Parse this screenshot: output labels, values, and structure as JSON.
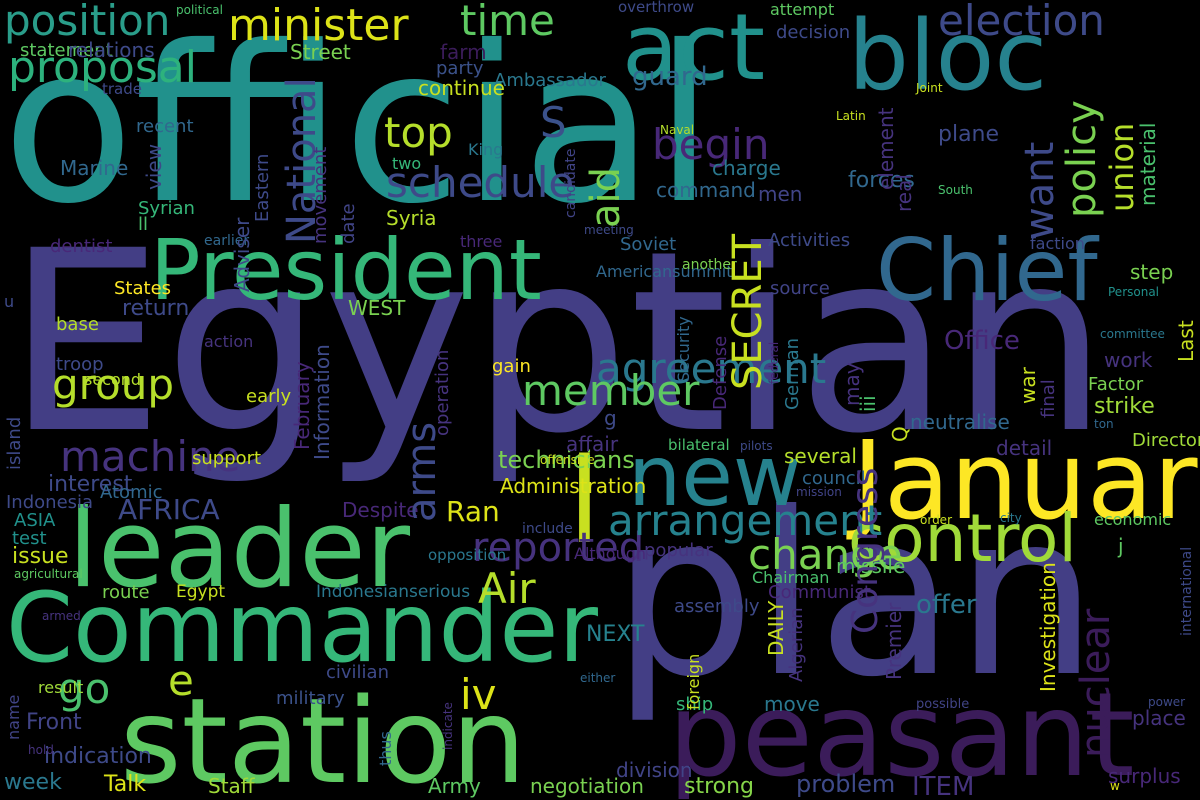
{
  "words": [
    {
      "text": "official",
      "color": "#21918c"
    },
    {
      "text": "Egyptian",
      "color": "#433e85"
    },
    {
      "text": "plan",
      "color": "#433e85"
    },
    {
      "text": "station",
      "color": "#5ec962"
    },
    {
      "text": "Commander",
      "color": "#35b779"
    },
    {
      "text": "leader",
      "color": "#4ac16d"
    },
    {
      "text": "President",
      "color": "#35b779"
    },
    {
      "text": "peasant",
      "color": "#3b1c5a"
    },
    {
      "text": "January",
      "color": "#fde725"
    },
    {
      "text": "Chief",
      "color": "#31688e"
    },
    {
      "text": "new",
      "color": "#26828e"
    },
    {
      "text": "act",
      "color": "#21918c"
    },
    {
      "text": "bloc",
      "color": "#26828e"
    },
    {
      "text": "control",
      "color": "#a0da39"
    },
    {
      "text": "l",
      "color": "#c8e020"
    },
    {
      "text": "minister",
      "color": "#dde318"
    },
    {
      "text": "position",
      "color": "#2a9d8a"
    },
    {
      "text": "proposal",
      "color": "#2db27d"
    },
    {
      "text": "time",
      "color": "#5ec962"
    },
    {
      "text": "election",
      "color": "#3e4a89"
    },
    {
      "text": "group",
      "color": "#b5de2b"
    },
    {
      "text": "top",
      "color": "#b5de2b"
    },
    {
      "text": "S",
      "color": "#3b528b"
    },
    {
      "text": "schedule",
      "color": "#3e4a89"
    },
    {
      "text": "begin",
      "color": "#482878"
    },
    {
      "text": "guard",
      "color": "#31688e"
    },
    {
      "text": "machine",
      "color": "#46337e"
    },
    {
      "text": "agreement",
      "color": "#2a788e"
    },
    {
      "text": "member",
      "color": "#5ec962"
    },
    {
      "text": "change",
      "color": "#7ad151"
    },
    {
      "text": "reported",
      "color": "#46327e"
    },
    {
      "text": "arrangement",
      "color": "#26828e"
    },
    {
      "text": "iv",
      "color": "#dde318"
    },
    {
      "text": "go",
      "color": "#4ac16d"
    },
    {
      "text": "e",
      "color": "#b5de2b"
    },
    {
      "text": "Air",
      "color": "#b5de2b"
    },
    {
      "text": "Ran",
      "color": "#dde318"
    },
    {
      "text": "AFRICA",
      "color": "#3e4a89"
    },
    {
      "text": "Office",
      "color": "#482878"
    },
    {
      "text": "WEST",
      "color": "#7ad151"
    },
    {
      "text": "return",
      "color": "#3e4a89"
    },
    {
      "text": "offer",
      "color": "#2a788e"
    },
    {
      "text": "problem",
      "color": "#3e4a89"
    },
    {
      "text": "ITEM",
      "color": "#46337e"
    },
    {
      "text": "ship",
      "color": "#35b779"
    },
    {
      "text": "division",
      "color": "#414487"
    },
    {
      "text": "negotiation",
      "color": "#7ad151"
    },
    {
      "text": "strong",
      "color": "#86d549"
    },
    {
      "text": "Army",
      "color": "#5ec962"
    },
    {
      "text": "Staff",
      "color": "#a0da39"
    },
    {
      "text": "week",
      "color": "#2a788e"
    },
    {
      "text": "Talk",
      "color": "#dde318"
    },
    {
      "text": "indication",
      "color": "#3e4a89"
    },
    {
      "text": "Front",
      "color": "#414487"
    },
    {
      "text": "result",
      "color": "#a0da39"
    },
    {
      "text": "military",
      "color": "#3b528b"
    },
    {
      "text": "civilian",
      "color": "#3e4a89"
    },
    {
      "text": "Egypt",
      "color": "#c8e020"
    },
    {
      "text": "Indonesianserious",
      "color": "#2a788e"
    },
    {
      "text": "route",
      "color": "#7ad151"
    },
    {
      "text": "test",
      "color": "#21918c"
    },
    {
      "text": "ASIA",
      "color": "#21918c"
    },
    {
      "text": "issue",
      "color": "#c8e020"
    },
    {
      "text": "interest",
      "color": "#3e4a89"
    },
    {
      "text": "Atomic",
      "color": "#31688e"
    },
    {
      "text": "Indonesia",
      "color": "#3e4a89"
    },
    {
      "text": "support",
      "color": "#c8e020"
    },
    {
      "text": "Despite",
      "color": "#482878"
    },
    {
      "text": "Administration",
      "color": "#dde318"
    },
    {
      "text": "technicians",
      "color": "#7ad151"
    },
    {
      "text": "earlier",
      "color": "#31688e"
    },
    {
      "text": "dentist",
      "color": "#482878"
    },
    {
      "text": "States",
      "color": "#fde725"
    },
    {
      "text": "base",
      "color": "#b5de2b"
    },
    {
      "text": "troop",
      "color": "#3e4a89"
    },
    {
      "text": "second",
      "color": "#b5de2b"
    },
    {
      "text": "action",
      "color": "#46337e"
    },
    {
      "text": "early",
      "color": "#c8e020"
    },
    {
      "text": "Syria",
      "color": "#b5de2b"
    },
    {
      "text": "Syrian",
      "color": "#35b779"
    },
    {
      "text": "ll",
      "color": "#4ac16d"
    },
    {
      "text": "Marine",
      "color": "#31688e"
    },
    {
      "text": "recent",
      "color": "#31688e"
    },
    {
      "text": "trade",
      "color": "#3e4a89"
    },
    {
      "text": "statement",
      "color": "#5ec962"
    },
    {
      "text": "relations",
      "color": "#3e4a89"
    },
    {
      "text": "Street",
      "color": "#7ad151"
    },
    {
      "text": "farm",
      "color": "#3b1c5a"
    },
    {
      "text": "party",
      "color": "#3b528b"
    },
    {
      "text": "Ambassador",
      "color": "#2a788e"
    },
    {
      "text": "continue",
      "color": "#c8e020"
    },
    {
      "text": "political",
      "color": "#4ac16d"
    },
    {
      "text": "overthrow",
      "color": "#3e4a89"
    },
    {
      "text": "attempt",
      "color": "#5ec962"
    },
    {
      "text": "decision",
      "color": "#3e4a89"
    },
    {
      "text": "Joint",
      "color": "#c8e020"
    },
    {
      "text": "Latin",
      "color": "#c8e020"
    },
    {
      "text": "Naval",
      "color": "#b5de2b"
    },
    {
      "text": "King",
      "color": "#2a788e"
    },
    {
      "text": "two",
      "color": "#35b779"
    },
    {
      "text": "charge",
      "color": "#2a788e"
    },
    {
      "text": "command",
      "color": "#31688e"
    },
    {
      "text": "men",
      "color": "#414487"
    },
    {
      "text": "forces",
      "color": "#31688e"
    },
    {
      "text": "plane",
      "color": "#3e4a89"
    },
    {
      "text": "South",
      "color": "#4ac16d"
    },
    {
      "text": "three",
      "color": "#482878"
    },
    {
      "text": "meeting",
      "color": "#3e4a89"
    },
    {
      "text": "Soviet",
      "color": "#31688e"
    },
    {
      "text": "Activities",
      "color": "#3e4a89"
    },
    {
      "text": "faction",
      "color": "#3e4a89"
    },
    {
      "text": "Americansummit",
      "color": "#31688e"
    },
    {
      "text": "another",
      "color": "#7ad151"
    },
    {
      "text": "source",
      "color": "#414487"
    },
    {
      "text": "step",
      "color": "#7ad151"
    },
    {
      "text": "Personal",
      "color": "#21918c"
    },
    {
      "text": "committee",
      "color": "#2a788e"
    },
    {
      "text": "work",
      "color": "#46337e"
    },
    {
      "text": "Factor",
      "color": "#7ad151"
    },
    {
      "text": "strike",
      "color": "#a0da39"
    },
    {
      "text": "ton",
      "color": "#31688e"
    },
    {
      "text": "gain",
      "color": "#fde725"
    },
    {
      "text": "g",
      "color": "#3e4a89"
    },
    {
      "text": "affair",
      "color": "#46337e"
    },
    {
      "text": "bilateral",
      "color": "#4ac16d"
    },
    {
      "text": "pilots",
      "color": "#3e4a89"
    },
    {
      "text": "several",
      "color": "#b5de2b"
    },
    {
      "text": "council",
      "color": "#31688e"
    },
    {
      "text": "neutralise",
      "color": "#31688e"
    },
    {
      "text": "detail",
      "color": "#46337e"
    },
    {
      "text": "Director",
      "color": "#a0da39"
    },
    {
      "text": "offensive",
      "color": "#c8e020"
    },
    {
      "text": "mission",
      "color": "#414487"
    },
    {
      "text": "order",
      "color": "#c8e020"
    },
    {
      "text": "city",
      "color": "#2a788e"
    },
    {
      "text": "economic",
      "color": "#5ec962"
    },
    {
      "text": "j",
      "color": "#5ec962"
    },
    {
      "text": "include",
      "color": "#3e4a89"
    },
    {
      "text": "opposition",
      "color": "#2a788e"
    },
    {
      "text": "Although",
      "color": "#482878"
    },
    {
      "text": "popular",
      "color": "#46337e"
    },
    {
      "text": "missile",
      "color": "#5ec962"
    },
    {
      "text": "Chairman",
      "color": "#4ac16d"
    },
    {
      "text": "Communist",
      "color": "#482878"
    },
    {
      "text": "assembly",
      "color": "#3e4a89"
    },
    {
      "text": "NEXT",
      "color": "#26828e"
    },
    {
      "text": "move",
      "color": "#2a788e"
    },
    {
      "text": "place",
      "color": "#46337e"
    },
    {
      "text": "surplus",
      "color": "#482878"
    },
    {
      "text": "w",
      "color": "#dde318"
    },
    {
      "text": "power",
      "color": "#3e4a89"
    },
    {
      "text": "possible",
      "color": "#414487"
    },
    {
      "text": "either",
      "color": "#31688e"
    },
    {
      "text": "armed",
      "color": "#46337e"
    },
    {
      "text": "aid",
      "color": "#7ad151"
    },
    {
      "text": "National",
      "color": "#3e4a89"
    },
    {
      "text": "SECRET",
      "color": "#c8e020"
    },
    {
      "text": "want",
      "color": "#3e4a89"
    },
    {
      "text": "policy",
      "color": "#7ad151"
    },
    {
      "text": "union",
      "color": "#b5de2b"
    },
    {
      "text": "nuclear",
      "color": "#3b1c5a"
    },
    {
      "text": "Congress",
      "color": "#46337e"
    },
    {
      "text": "arms",
      "color": "#3e4a89"
    },
    {
      "text": "February",
      "color": "#482878"
    },
    {
      "text": "Information",
      "color": "#3e4a89"
    },
    {
      "text": "Adviser",
      "color": "#3e4a89"
    },
    {
      "text": "Eastern",
      "color": "#3e4a89"
    },
    {
      "text": "movement",
      "color": "#46337e"
    },
    {
      "text": "date",
      "color": "#414487"
    },
    {
      "text": "view",
      "color": "#3e4a89"
    },
    {
      "text": "candidate",
      "color": "#414487"
    },
    {
      "text": "element",
      "color": "#46337e"
    },
    {
      "text": "real",
      "color": "#46337e"
    },
    {
      "text": "material",
      "color": "#4ac16d"
    },
    {
      "text": "Last",
      "color": "#c8e020"
    },
    {
      "text": "German",
      "color": "#2a788e"
    },
    {
      "text": "federal",
      "color": "#482878"
    },
    {
      "text": "may",
      "color": "#46327e"
    },
    {
      "text": "iii",
      "color": "#4ac16d"
    },
    {
      "text": "Q",
      "color": "#c8e020"
    },
    {
      "text": "war",
      "color": "#c8e020"
    },
    {
      "text": "final",
      "color": "#46337e"
    },
    {
      "text": "Defense",
      "color": "#482878"
    },
    {
      "text": "Security",
      "color": "#31688e"
    },
    {
      "text": "operation",
      "color": "#46337e"
    },
    {
      "text": "international",
      "color": "#3e4a89"
    },
    {
      "text": "DAILY",
      "color": "#c8e020"
    },
    {
      "text": "foreign",
      "color": "#c8e020"
    },
    {
      "text": "Algerian",
      "color": "#46337e"
    },
    {
      "text": "Premier",
      "color": "#46337e"
    },
    {
      "text": "Investigation",
      "color": "#dde318"
    },
    {
      "text": "island",
      "color": "#3e4a89"
    },
    {
      "text": "name",
      "color": "#414487"
    },
    {
      "text": "thus",
      "color": "#31688e"
    },
    {
      "text": "indicate",
      "color": "#46337e"
    },
    {
      "text": "hold",
      "color": "#46337e"
    },
    {
      "text": "agricultural",
      "color": "#5ec962"
    },
    {
      "text": "u",
      "color": "#3e4a89"
    }
  ]
}
